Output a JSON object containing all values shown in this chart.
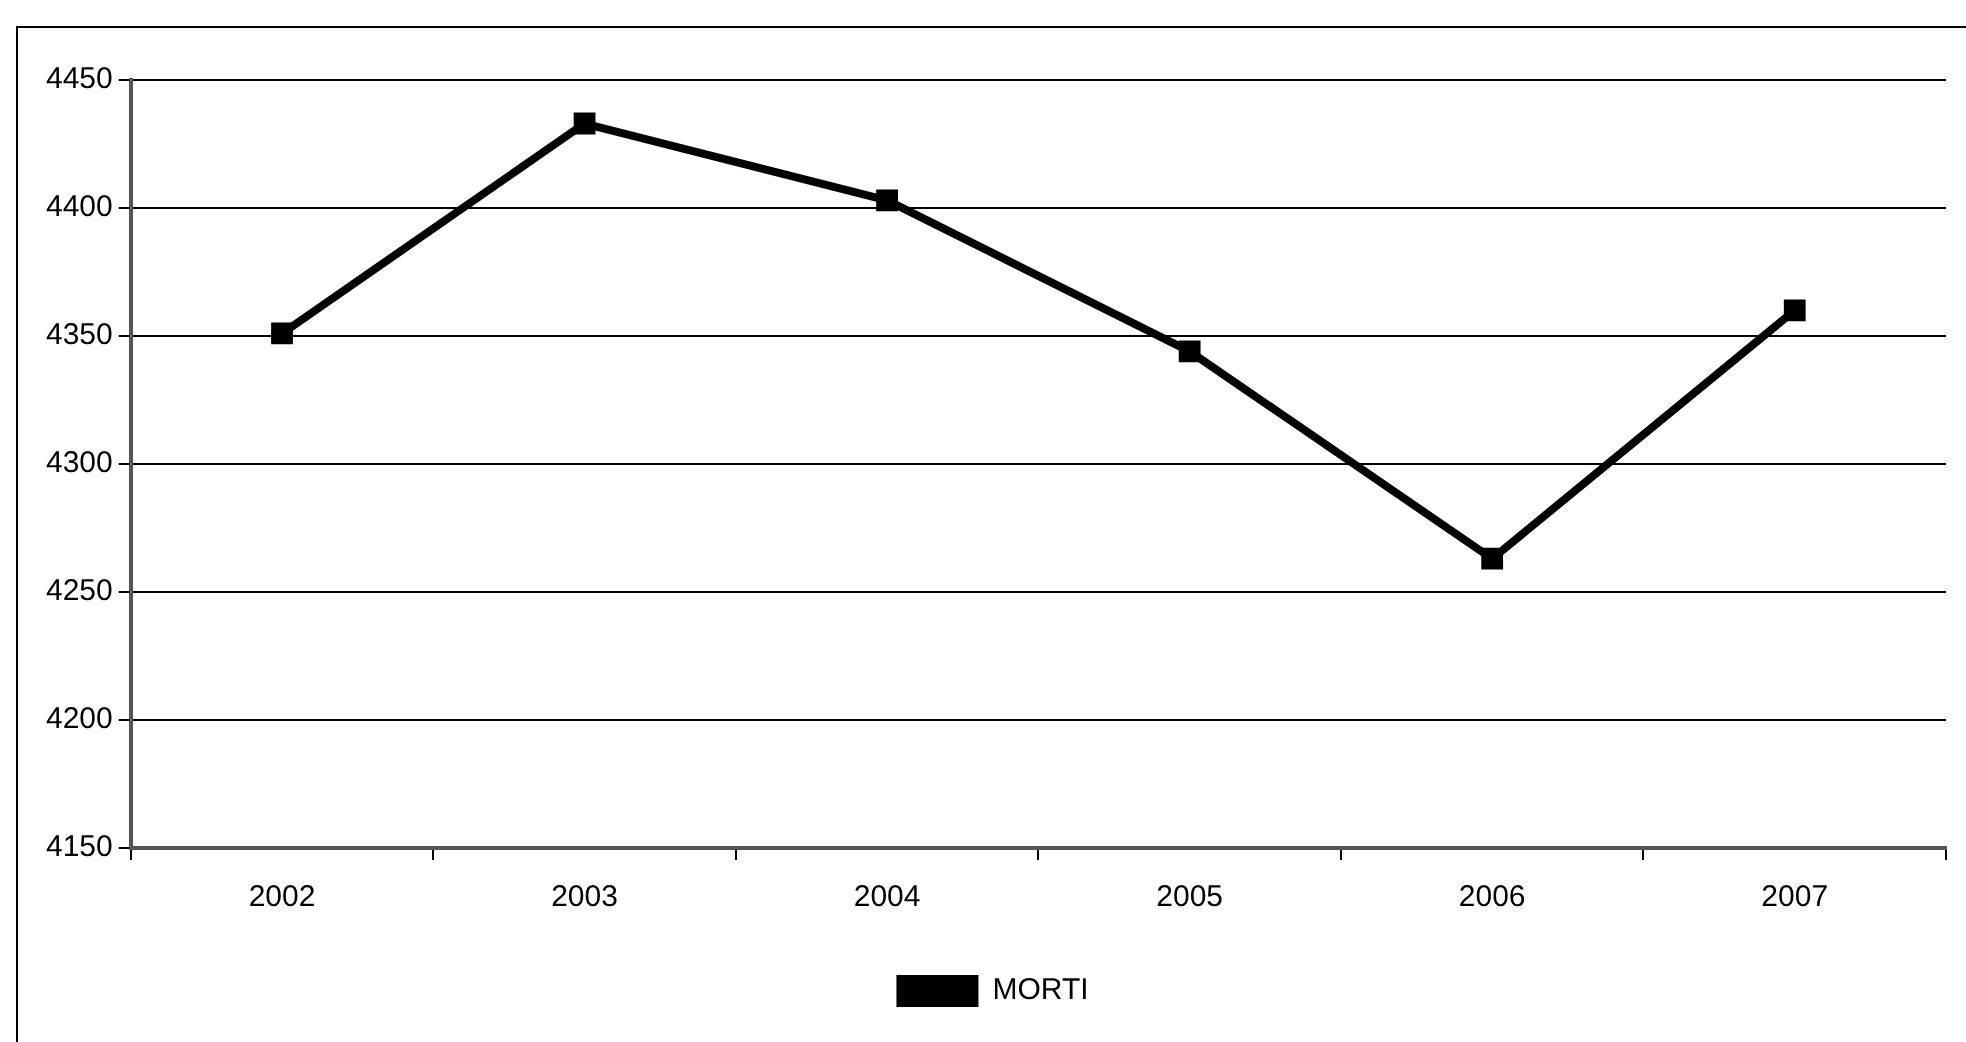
{
  "chart_data": {
    "type": "line",
    "categories": [
      "2002",
      "2003",
      "2004",
      "2005",
      "2006",
      "2007"
    ],
    "series": [
      {
        "name": "MORTI",
        "color": "#000000",
        "values": [
          4351,
          4433,
          4403,
          4344,
          4263,
          4360
        ]
      }
    ],
    "ylim": [
      4150,
      4450
    ],
    "yticks": [
      4150,
      4200,
      4250,
      4300,
      4350,
      4400,
      4450
    ],
    "grid": "y",
    "legend": "bottom",
    "marker": "square",
    "line_style": "solid"
  }
}
